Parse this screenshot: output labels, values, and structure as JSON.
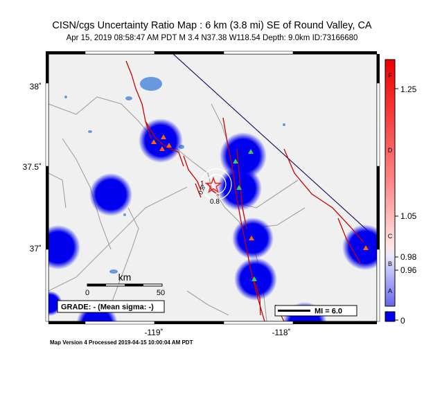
{
  "header": {
    "title": "CISN/cgs Uncertainty Ratio Map : 6 km (3.8 mi) SE of Round Valley, CA",
    "subtitle": "Apr 15, 2019 08:58:47 AM PDT   M 3.4   N37.38 W118.54   Depth: 9.0km   ID:73166680"
  },
  "map": {
    "lat_ticks": [
      "38˚",
      "37.5˚",
      "37˚"
    ],
    "lon_ticks": [
      "-119˚",
      "-118˚"
    ],
    "scale_bar": {
      "unit": "km",
      "zero": "0",
      "max": "50"
    },
    "grade": "GRADE: - (Mean sigma: -)",
    "mi_legend": "MI = 6.0",
    "contour_labels": [
      "1",
      "0.8",
      "0.8"
    ],
    "colors": {
      "ocean": "#f0f0f0",
      "station_blob": "#0000ee",
      "fault": "#cc0000",
      "road": "#a0a0a0",
      "lake": "#6699dd",
      "epicenter": "#ee2222",
      "station_triangle_a": "#33cc66",
      "station_triangle_b": "#ff6600"
    }
  },
  "colorbar": {
    "values": [
      "1.25",
      "1.05",
      "0.98",
      "0.96",
      "0"
    ],
    "letters": [
      "F",
      "D",
      "C",
      "B",
      "A"
    ]
  },
  "footer": "Map Version 4 Processed 2019-04-15 10:00:04 AM PDT"
}
